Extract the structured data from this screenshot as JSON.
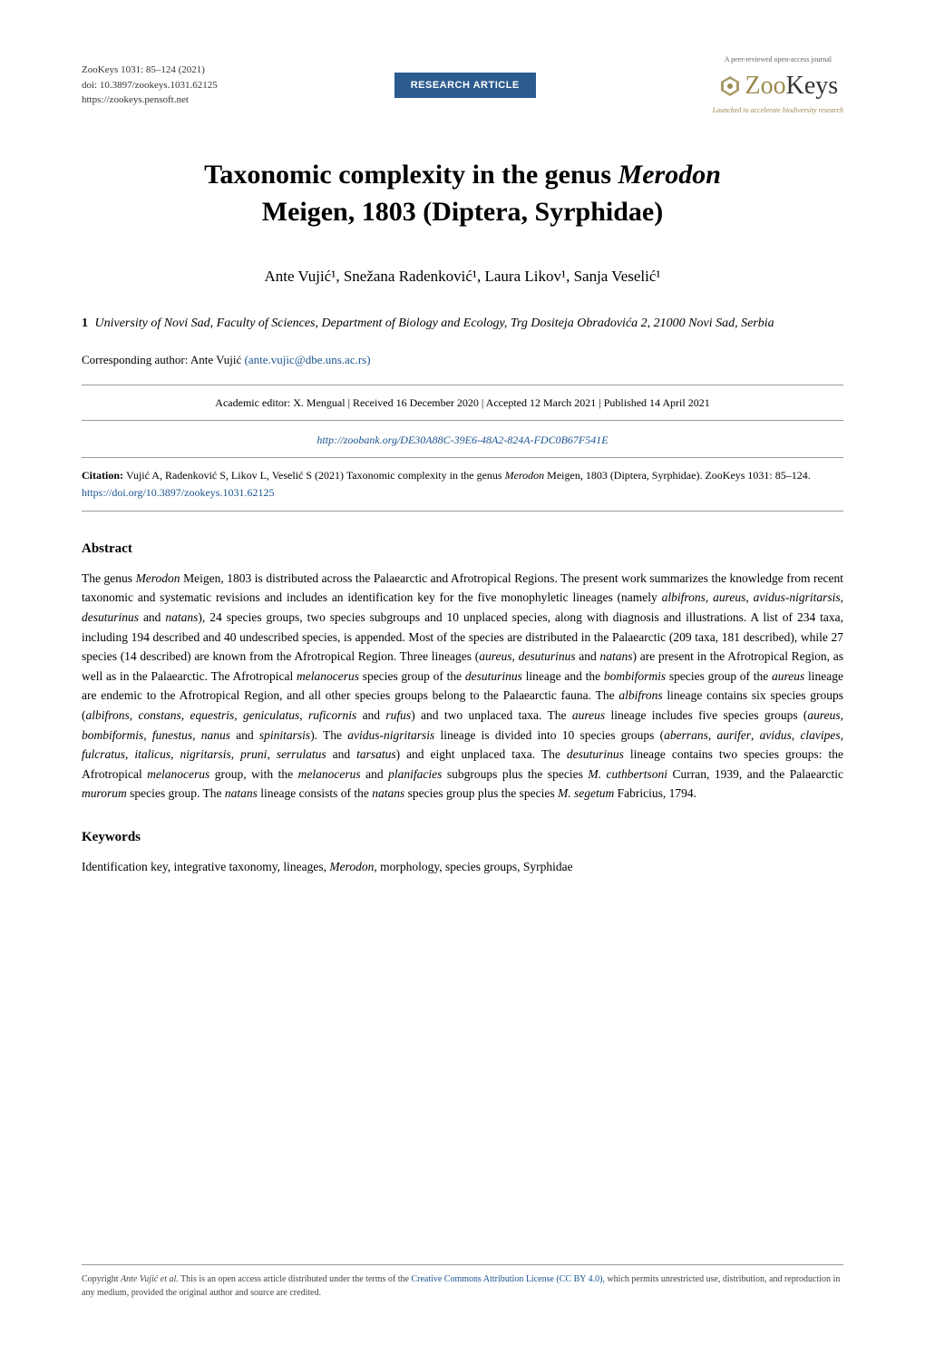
{
  "header": {
    "journal_line1": "ZooKeys 1031: 85–124 (2021)",
    "doi_line": "doi: 10.3897/zookeys.1031.62125",
    "url_line": "https://zookeys.pensoft.net",
    "badge_text": "RESEARCH ARTICLE",
    "logo": {
      "top_text": "A peer-reviewed open-access journal",
      "main_prefix": "Zoo",
      "main_suffix": "Keys",
      "subtitle": "Launched to accelerate biodiversity research",
      "hex_color": "#9b8b4f"
    }
  },
  "title_line1": "Taxonomic complexity in the genus ",
  "title_genus": "Merodon",
  "title_line2": "Meigen, 1803 (Diptera, Syrphidae)",
  "authors_text": "Ante Vujić¹, Snežana Radenković¹, Laura Likov¹, Sanja Veselić¹",
  "affiliation_num": "1",
  "affiliation_text": "University of Novi Sad, Faculty of Sciences, Department of Biology and Ecology, Trg Dositeja Obradovića 2, 21000 Novi Sad, Serbia",
  "corresponding_label": "Corresponding author: ",
  "corresponding_name": "Ante Vujić ",
  "corresponding_email": "(ante.vujic@dbe.uns.ac.rs)",
  "meta_line": "Academic editor: X. Mengual  |  Received 16 December 2020  |  Accepted 12 March 2021  |  Published 14 April 2021",
  "zoobank_url": "http://zoobank.org/DE30A88C-39E6-48A2-824A-FDC0B67F541E",
  "citation_label": "Citation: ",
  "citation_text": "Vujić A, Radenković S, Likov L, Veselić S (2021) Taxonomic complexity in the genus ",
  "citation_genus": "Merodon",
  "citation_text2": " Meigen, 1803 (Diptera, Syrphidae). ZooKeys 1031: 85–124. ",
  "citation_doi_url": "https://doi.org/10.3897/zookeys.1031.62125",
  "abstract": {
    "heading": "Abstract",
    "body": "The genus <i>Merodon</i> Meigen, 1803 is distributed across the Palaearctic and Afrotropical Regions. The present work summarizes the knowledge from recent taxonomic and systematic revisions and includes an identification key for the five monophyletic lineages (namely <i>albifrons</i>, <i>aureus</i>, <i>avidus-nigritarsis</i>, <i>desuturinus</i> and <i>natans</i>), 24 species groups, two species subgroups and 10 unplaced species, along with diagnosis and illustrations. A list of 234 taxa, including 194 described and 40 undescribed species, is appended. Most of the species are distributed in the Palaearctic (209 taxa, 181 described), while 27 species (14 described) are known from the Afrotropical Region. Three lineages (<i>aureus</i>, <i>desuturinus</i> and <i>natans</i>) are present in the Afrotropical Region, as well as in the Palaearctic. The Afrotropical <i>melanocerus</i> species group of the <i>desuturinus</i> lineage and the <i>bombiformis</i> species group of the <i>aureus</i> lineage are endemic to the Afrotropical Region, and all other species groups belong to the Palaearctic fauna. The <i>albifrons</i> lineage contains six species groups (<i>albifrons</i>, <i>constans</i>, <i>equestris</i>, <i>geniculatus</i>, <i>ruficornis</i> and <i>rufus</i>) and two unplaced taxa. The <i>aureus</i> lineage includes five species groups (<i>aureus</i>, <i>bombiformis</i>, <i>funestus</i>, <i>nanus</i> and <i>spinitarsis</i>). The <i>avidus-nigritarsis</i> lineage is divided into 10 species groups (<i>aberrans</i>, <i>aurifer</i>, <i>avidus</i>, <i>clavipes</i>, <i>fulcratus</i>, <i>italicus</i>, <i>nigritarsis</i>, <i>pruni</i>, <i>serrulatus</i> and <i>tarsatus</i>) and eight unplaced taxa. The <i>desuturinus</i> lineage contains two species groups: the Afrotropical <i>melanocerus</i> group, with the <i>melanocerus</i> and <i>planifacies</i> subgroups plus the species <i>M. cuthbertsoni</i> Curran, 1939, and the Palaearctic <i>murorum</i> species group. The <i>natans</i> lineage consists of the <i>natans</i> species group plus the species <i>M. segetum</i> Fabricius, 1794."
  },
  "keywords": {
    "heading": "Keywords",
    "body": "Identification key, integrative taxonomy, lineages, <i>Merodon</i>, morphology, species groups, Syrphidae"
  },
  "footer": {
    "text_prefix": "Copyright ",
    "author_italic": "Ante Vujić et al.",
    "text_body": " This is an open access article distributed under the terms of the ",
    "license_link": "Creative Commons Attribution License (CC BY 4.0)",
    "text_suffix": ", which permits unrestricted use, distribution, and reproduction in any medium, provided the original author and source are credited."
  },
  "colors": {
    "badge_bg": "#2b5b8f",
    "link": "#1a5490",
    "accent": "#9b8b4f",
    "text": "#000000",
    "border": "#999999"
  },
  "typography": {
    "body_fontsize": 14,
    "title_fontsize": 30,
    "authors_fontsize": 17,
    "abstract_fontsize": 13.5,
    "meta_fontsize": 12,
    "footer_fontsize": 10
  }
}
